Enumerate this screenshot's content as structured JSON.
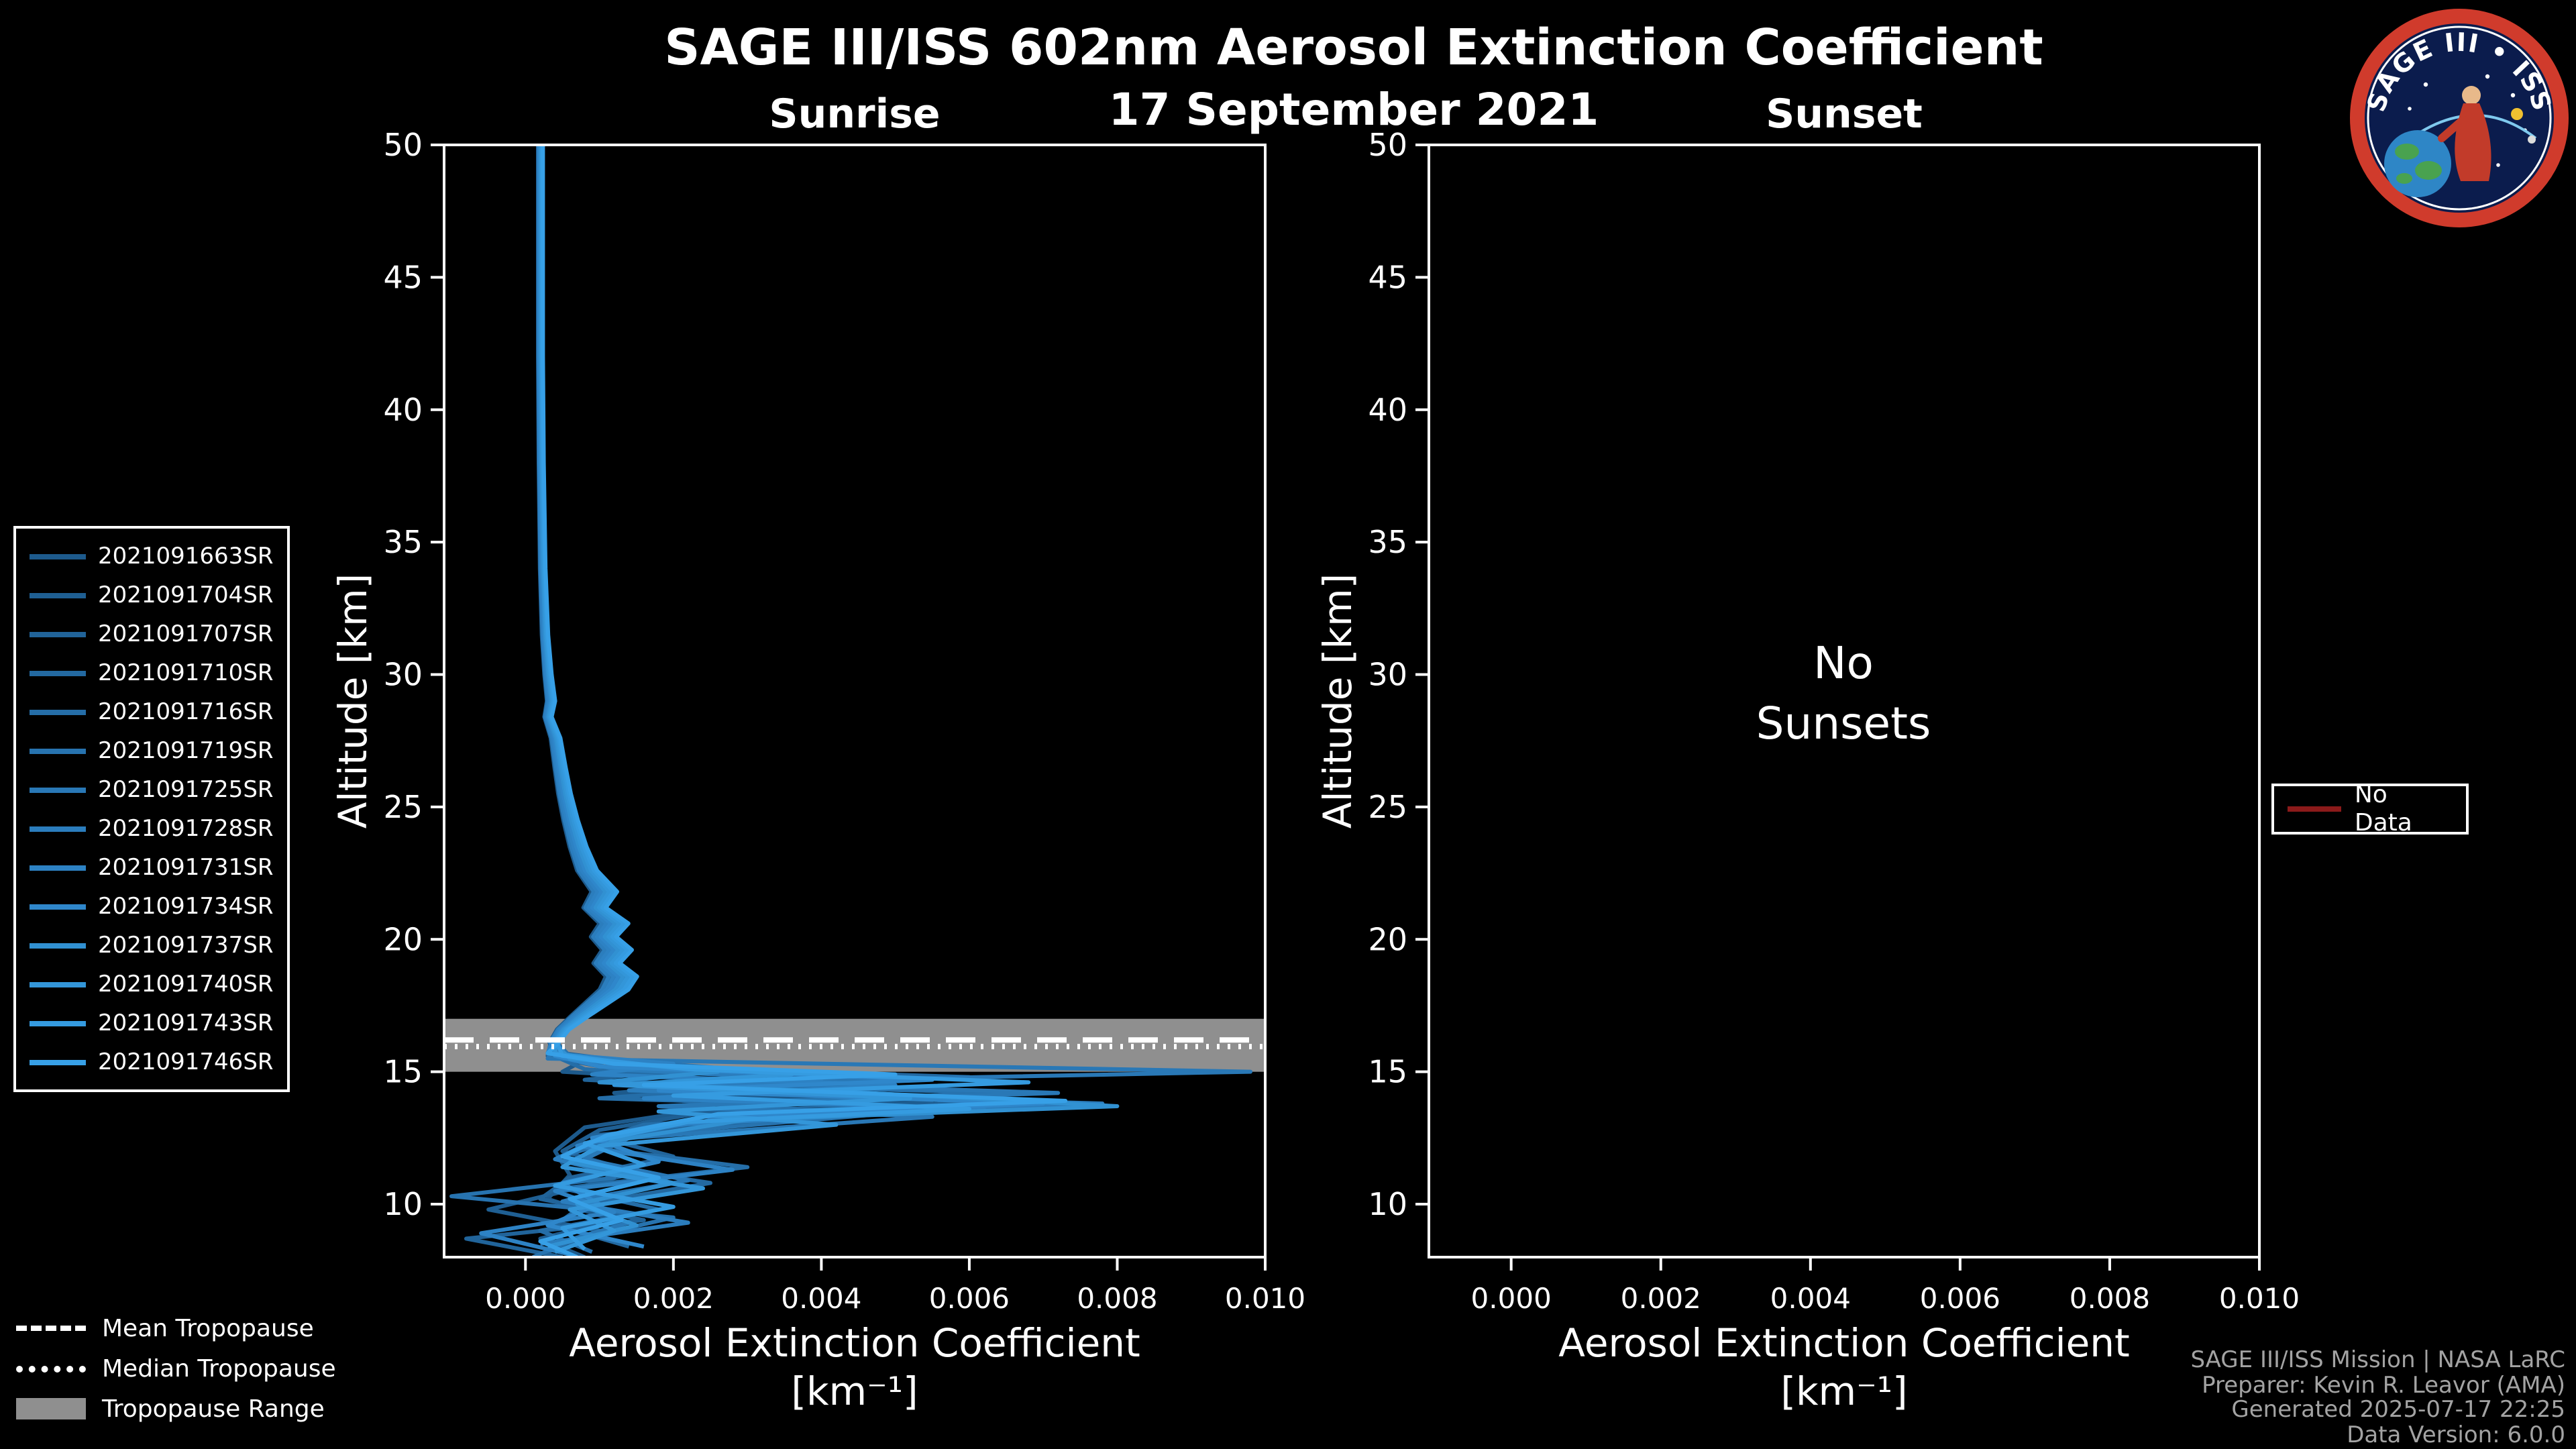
{
  "header": {
    "title": "SAGE III/ISS 602nm Aerosol Extinction Coefficient",
    "date": "17 September 2021"
  },
  "annotations": {
    "no_sunsets": "No\nSunsets"
  },
  "legends": {
    "no_data": {
      "label": "No Data",
      "color": "#8b1a1a"
    },
    "tropopause": {
      "mean_label": "Mean Tropopause",
      "median_label": "Median Tropopause",
      "range_label": "Tropopause Range",
      "range_color": "#8f8f8f"
    }
  },
  "footer": {
    "lines": [
      "SAGE III/ISS Mission | NASA LaRC",
      "Preparer: Kevin R. Leavor (AMA)",
      "Generated 2025-07-17 22:25",
      "Data Version: 6.0.0"
    ]
  },
  "logo": {
    "title": "SAGE III • ISS"
  },
  "chart_data": {
    "type": "line",
    "title": "SAGE III/ISS 602nm Aerosol Extinction Coefficient",
    "subtitle": "17 September 2021",
    "line_color_theme": "blues",
    "panels": [
      {
        "title": "Sunrise",
        "xlabel": "Aerosol Extinction Coefficient",
        "xunit": "[km⁻¹]",
        "ylabel": "Altitude [km]",
        "xlim": [
          -0.0011,
          0.01
        ],
        "ylim": [
          8,
          50
        ],
        "xticks": [
          0,
          0.002,
          0.004,
          0.006,
          0.008,
          0.01
        ],
        "yticks": [
          10,
          15,
          20,
          25,
          30,
          35,
          40,
          45,
          50
        ],
        "tropopause": {
          "range": [
            15.0,
            17.0
          ],
          "mean": 16.2,
          "median": 15.95,
          "range_color": "#8f8f8f"
        },
        "shared_upper_profile": [
          [
            0.0002,
            50
          ],
          [
            0.0002,
            42
          ],
          [
            0.00021,
            38
          ],
          [
            0.00023,
            34
          ],
          [
            0.00026,
            31.5
          ],
          [
            0.0003,
            30
          ],
          [
            0.00034,
            29
          ],
          [
            0.0003,
            28.4
          ],
          [
            0.0004,
            27.6
          ],
          [
            0.00046,
            26.5
          ],
          [
            0.00052,
            25.5
          ],
          [
            0.0006,
            24.5
          ],
          [
            0.0007,
            23.5
          ],
          [
            0.00082,
            22.6
          ],
          [
            0.00105,
            21.8
          ],
          [
            0.00092,
            21.2
          ],
          [
            0.00118,
            20.6
          ],
          [
            0.00104,
            20.1
          ],
          [
            0.00122,
            19.6
          ],
          [
            0.00108,
            19.1
          ],
          [
            0.00128,
            18.6
          ],
          [
            0.00118,
            18.1
          ],
          [
            0.00095,
            17.6
          ],
          [
            0.00072,
            17.1
          ],
          [
            0.0005,
            16.6
          ],
          [
            0.00038,
            16.1
          ]
        ],
        "series": [
          {
            "name": "2021091663SR",
            "color": "#1d5a8c",
            "scale": 0.85,
            "points": [
              [
                0.0004,
                15.7
              ],
              [
                0.0007,
                15.3
              ],
              [
                0.0005,
                15.0
              ],
              [
                0.003,
                14.6
              ],
              [
                0.0012,
                14.2
              ],
              [
                0.0055,
                13.8
              ],
              [
                0.002,
                13.4
              ],
              [
                0.0008,
                12.9
              ],
              [
                0.0004,
                12.0
              ],
              [
                0.0006,
                11.1
              ],
              [
                0.0003,
                10.2
              ],
              [
                0.0012,
                9.4
              ],
              [
                0.0002,
                8.7
              ],
              [
                0.0008,
                8.0
              ]
            ]
          },
          {
            "name": "2021091704SR",
            "color": "#1f5f93",
            "scale": 0.9,
            "points": [
              [
                0.0003,
                15.6
              ],
              [
                0.001,
                15.2
              ],
              [
                0.0045,
                14.8
              ],
              [
                0.0015,
                14.3
              ],
              [
                0.0068,
                13.9
              ],
              [
                0.0025,
                13.5
              ],
              [
                0.001,
                12.8
              ],
              [
                0.0005,
                12.0
              ],
              [
                0.0015,
                11.2
              ],
              [
                0.0004,
                10.4
              ],
              [
                -0.0005,
                9.8
              ],
              [
                0.001,
                9.0
              ],
              [
                0.0003,
                8.2
              ]
            ]
          },
          {
            "name": "2021091707SR",
            "color": "#21649a",
            "scale": 0.95,
            "points": [
              [
                0.0005,
                15.7
              ],
              [
                0.0022,
                15.1
              ],
              [
                0.0008,
                14.7
              ],
              [
                0.0052,
                14.1
              ],
              [
                0.0018,
                13.7
              ],
              [
                0.004,
                13.3
              ],
              [
                0.0009,
                12.6
              ],
              [
                0.002,
                11.8
              ],
              [
                0.0006,
                11.0
              ],
              [
                0.0002,
                10.2
              ],
              [
                0.0016,
                9.4
              ],
              [
                -0.0008,
                8.7
              ],
              [
                0.0005,
                8.0
              ]
            ]
          },
          {
            "name": "2021091710SR",
            "color": "#2369a1",
            "scale": 1.0,
            "points": [
              [
                0.0004,
                15.6
              ],
              [
                0.0015,
                15.2
              ],
              [
                0.006,
                14.8
              ],
              [
                0.0022,
                14.4
              ],
              [
                0.0075,
                13.8
              ],
              [
                0.003,
                13.2
              ],
              [
                0.0012,
                12.4
              ],
              [
                0.0006,
                11.6
              ],
              [
                0.0025,
                10.8
              ],
              [
                0.0008,
                10.0
              ],
              [
                0.0004,
                9.2
              ],
              [
                0.0014,
                8.4
              ]
            ]
          },
          {
            "name": "2021091716SR",
            "color": "#256ea8",
            "scale": 1.05,
            "points": [
              [
                0.0003,
                15.7
              ],
              [
                0.0008,
                15.1
              ],
              [
                0.0035,
                14.5
              ],
              [
                0.001,
                14.0
              ],
              [
                0.0058,
                13.6
              ],
              [
                0.0016,
                13.0
              ],
              [
                0.0007,
                12.2
              ],
              [
                0.003,
                11.4
              ],
              [
                0.0005,
                10.6
              ],
              [
                0.0018,
                9.8
              ],
              [
                0.0002,
                9.0
              ],
              [
                0.0009,
                8.2
              ]
            ]
          },
          {
            "name": "2021091719SR",
            "color": "#2773af",
            "scale": 1.1,
            "points": [
              [
                0.0006,
                15.6
              ],
              [
                0.0028,
                15.1
              ],
              [
                0.0012,
                14.6
              ],
              [
                0.0065,
                14.2
              ],
              [
                0.0024,
                13.8
              ],
              [
                0.0048,
                13.4
              ],
              [
                0.0014,
                12.6
              ],
              [
                0.0005,
                11.8
              ],
              [
                0.0012,
                11.0
              ],
              [
                -0.001,
                10.3
              ],
              [
                0.002,
                9.5
              ],
              [
                0.0006,
                8.6
              ],
              [
                0.0001,
                8.0
              ]
            ]
          },
          {
            "name": "2021091725SR",
            "color": "#2978b6",
            "scale": 1.15,
            "points": [
              [
                0.0003,
                15.5
              ],
              [
                0.0098,
                15.0
              ],
              [
                0.0026,
                14.6
              ],
              [
                0.0072,
                14.2
              ],
              [
                0.0018,
                13.7
              ],
              [
                0.0055,
                13.3
              ],
              [
                0.0014,
                12.5
              ],
              [
                0.0008,
                11.7
              ],
              [
                0.0022,
                10.9
              ],
              [
                0.0006,
                10.1
              ],
              [
                0.0014,
                9.3
              ],
              [
                0.0004,
                8.5
              ]
            ]
          },
          {
            "name": "2021091728SR",
            "color": "#2b7dbd",
            "scale": 0.88,
            "points": [
              [
                0.0005,
                15.6
              ],
              [
                0.0012,
                15.1
              ],
              [
                0.004,
                14.7
              ],
              [
                0.0014,
                14.3
              ],
              [
                0.0078,
                13.8
              ],
              [
                0.0028,
                13.3
              ],
              [
                0.001,
                12.5
              ],
              [
                0.0004,
                11.7
              ],
              [
                0.0016,
                10.9
              ],
              [
                0.0005,
                10.1
              ],
              [
                0.0022,
                9.3
              ],
              [
                0.0002,
                8.5
              ]
            ]
          },
          {
            "name": "2021091731SR",
            "color": "#2d82c4",
            "scale": 0.93,
            "points": [
              [
                0.0003,
                15.7
              ],
              [
                0.002,
                15.3
              ],
              [
                0.0009,
                14.9
              ],
              [
                0.005,
                14.5
              ],
              [
                0.0016,
                14.0
              ],
              [
                0.0062,
                13.6
              ],
              [
                0.002,
                13.0
              ],
              [
                0.0007,
                12.2
              ],
              [
                0.0028,
                11.3
              ],
              [
                0.0004,
                10.5
              ],
              [
                0.0012,
                9.7
              ],
              [
                -0.0006,
                8.9
              ],
              [
                0.0006,
                8.1
              ]
            ]
          },
          {
            "name": "2021091734SR",
            "color": "#2f87cb",
            "scale": 0.98,
            "points": [
              [
                0.0004,
                15.6
              ],
              [
                0.001,
                15.2
              ],
              [
                0.0055,
                14.7
              ],
              [
                0.0018,
                14.3
              ],
              [
                0.007,
                13.8
              ],
              [
                0.0024,
                13.3
              ],
              [
                0.0009,
                12.5
              ],
              [
                0.0018,
                11.6
              ],
              [
                0.0005,
                10.8
              ],
              [
                0.001,
                10.0
              ],
              [
                0.0003,
                9.2
              ],
              [
                0.0016,
                8.4
              ]
            ]
          },
          {
            "name": "2021091737SR",
            "color": "#3191d2",
            "scale": 1.03,
            "points": [
              [
                0.0006,
                15.5
              ],
              [
                0.0026,
                15.0
              ],
              [
                0.001,
                14.6
              ],
              [
                0.0046,
                14.2
              ],
              [
                0.008,
                13.7
              ],
              [
                0.003,
                13.2
              ],
              [
                0.0012,
                12.4
              ],
              [
                0.0006,
                11.6
              ],
              [
                0.002,
                10.8
              ],
              [
                0.0007,
                10.0
              ],
              [
                0.0015,
                9.2
              ],
              [
                0.0003,
                8.4
              ]
            ]
          },
          {
            "name": "2021091740SR",
            "color": "#3396d9",
            "scale": 1.08,
            "points": [
              [
                0.0004,
                15.7
              ],
              [
                0.0014,
                15.3
              ],
              [
                0.0036,
                14.9
              ],
              [
                0.0012,
                14.5
              ],
              [
                0.0052,
                14.0
              ],
              [
                0.0018,
                13.5
              ],
              [
                0.0042,
                13.0
              ],
              [
                0.001,
                12.2
              ],
              [
                0.0005,
                11.4
              ],
              [
                0.0024,
                10.6
              ],
              [
                0.0006,
                9.8
              ],
              [
                0.0012,
                9.0
              ],
              [
                0.0004,
                8.2
              ]
            ]
          },
          {
            "name": "2021091743SR",
            "color": "#359be0",
            "scale": 1.13,
            "points": [
              [
                0.0005,
                15.6
              ],
              [
                0.0022,
                15.1
              ],
              [
                0.0068,
                14.6
              ],
              [
                0.002,
                14.1
              ],
              [
                0.006,
                13.6
              ],
              [
                0.0022,
                13.1
              ],
              [
                0.0008,
                12.3
              ],
              [
                0.0016,
                11.5
              ],
              [
                0.0004,
                10.7
              ],
              [
                0.002,
                9.9
              ],
              [
                0.0005,
                9.1
              ],
              [
                0.0008,
                8.3
              ]
            ]
          },
          {
            "name": "2021091746SR",
            "color": "#37a0e7",
            "scale": 1.18,
            "points": [
              [
                0.0003,
                15.7
              ],
              [
                0.0012,
                15.3
              ],
              [
                0.005,
                14.9
              ],
              [
                0.0016,
                14.5
              ],
              [
                0.0073,
                13.9
              ],
              [
                0.0026,
                13.4
              ],
              [
                0.0011,
                12.6
              ],
              [
                0.0005,
                11.8
              ],
              [
                0.0018,
                11.0
              ],
              [
                0.0006,
                10.2
              ],
              [
                0.0013,
                9.4
              ],
              [
                0.0002,
                8.6
              ],
              [
                0.0007,
                8.0
              ]
            ]
          }
        ]
      },
      {
        "title": "Sunset",
        "xlabel": "Aerosol Extinction Coefficient",
        "xunit": "[km⁻¹]",
        "ylabel": "Altitude [km]",
        "xlim": [
          -0.0011,
          0.01
        ],
        "ylim": [
          8,
          50
        ],
        "xticks": [
          0,
          0.002,
          0.004,
          0.006,
          0.008,
          0.01
        ],
        "yticks": [
          10,
          15,
          20,
          25,
          30,
          35,
          40,
          45,
          50
        ],
        "annotation": "No\nSunsets",
        "series": []
      }
    ]
  }
}
